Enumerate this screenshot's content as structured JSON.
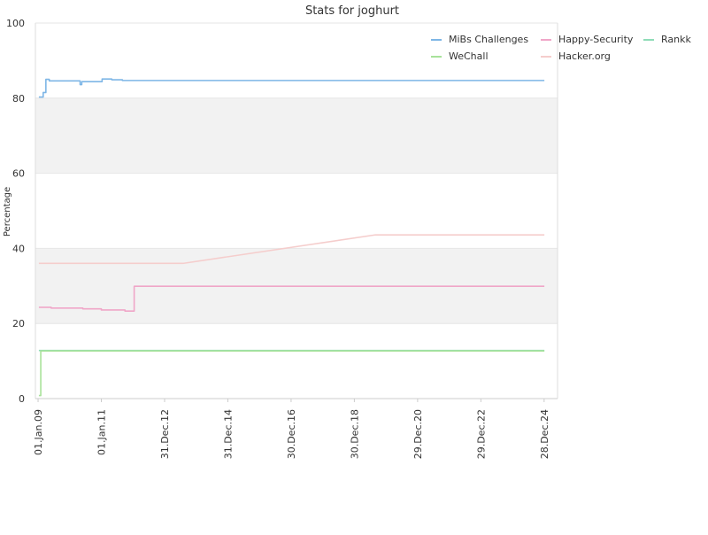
{
  "chart_data": {
    "type": "line",
    "title": "Stats for joghurt",
    "xlabel": "",
    "ylabel": "Percentage",
    "ylim": [
      0,
      100
    ],
    "yticks": [
      0,
      20,
      40,
      60,
      80,
      100
    ],
    "xlim": [
      "2008-12-01",
      "2025-06-01"
    ],
    "xticks": [
      {
        "label": "01.Jan.09",
        "date": "2009-01-01"
      },
      {
        "label": "01.Jan.11",
        "date": "2011-01-01"
      },
      {
        "label": "31.Dec.12",
        "date": "2012-12-31"
      },
      {
        "label": "31.Dec.14",
        "date": "2014-12-31"
      },
      {
        "label": "30.Dec.16",
        "date": "2016-12-30"
      },
      {
        "label": "30.Dec.18",
        "date": "2018-12-30"
      },
      {
        "label": "29.Dec.20",
        "date": "2020-12-29"
      },
      {
        "label": "29.Dec.22",
        "date": "2022-12-29"
      },
      {
        "label": "28.Dec.24",
        "date": "2024-12-28"
      }
    ],
    "grid": true,
    "legend_position": "top-right",
    "series": [
      {
        "name": "MiBs Challenges",
        "color": "#7eb6e6",
        "step": true,
        "points": [
          [
            "2009-01-10",
            80.3
          ],
          [
            "2009-03-01",
            81.5
          ],
          [
            "2009-04-01",
            85.0
          ],
          [
            "2009-05-10",
            84.6
          ],
          [
            "2010-04-01",
            84.6
          ],
          [
            "2010-05-01",
            83.6
          ],
          [
            "2010-05-20",
            84.4
          ],
          [
            "2011-01-01",
            84.4
          ],
          [
            "2011-01-10",
            85.1
          ],
          [
            "2011-05-01",
            84.9
          ],
          [
            "2011-09-01",
            84.7
          ],
          [
            "2024-12-31",
            84.7
          ]
        ]
      },
      {
        "name": "Happy-Security",
        "color": "#f0a6c8",
        "step": true,
        "points": [
          [
            "2009-01-10",
            24.3
          ],
          [
            "2009-06-01",
            24.1
          ],
          [
            "2010-06-01",
            23.9
          ],
          [
            "2011-01-01",
            23.6
          ],
          [
            "2011-10-01",
            23.3
          ],
          [
            "2012-01-15",
            29.9
          ],
          [
            "2024-12-31",
            29.9
          ]
        ]
      },
      {
        "name": "Rankk",
        "color": "#8fdcb8",
        "step": true,
        "points": [
          [
            "2009-01-10",
            12.8
          ],
          [
            "2024-12-31",
            12.8
          ]
        ]
      },
      {
        "name": "WeChall",
        "color": "#a8e29a",
        "step": true,
        "points": [
          [
            "2009-01-10",
            0.8
          ],
          [
            "2009-02-01",
            12.7
          ],
          [
            "2024-12-31",
            12.7
          ]
        ]
      },
      {
        "name": "Hacker.org",
        "color": "#f5cdcc",
        "step": false,
        "points": [
          [
            "2009-01-10",
            36.0
          ],
          [
            "2013-08-01",
            36.0
          ],
          [
            "2019-09-01",
            43.6
          ],
          [
            "2024-12-31",
            43.6
          ]
        ]
      }
    ]
  }
}
